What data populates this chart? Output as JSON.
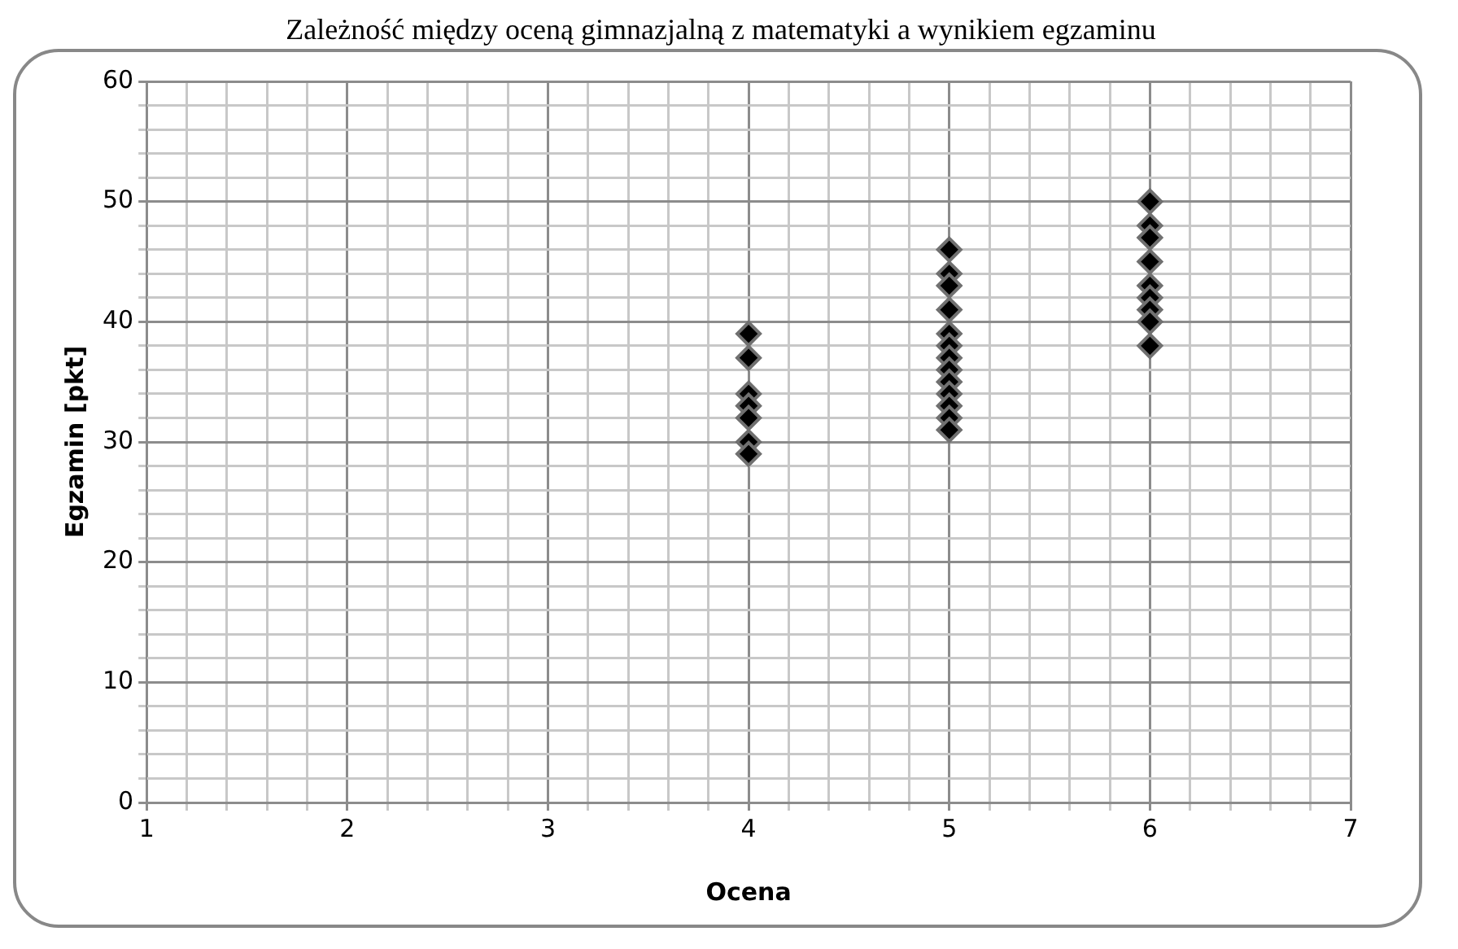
{
  "chart_data": {
    "type": "scatter",
    "title": "Zależność między oceną gimnazjalną z matematyki a wynikiem egzaminu",
    "xlabel": "Ocena",
    "ylabel": "Egzamin [pkt]",
    "series": [
      {
        "color": "#000000",
        "x": [
          4,
          4,
          4,
          4,
          4,
          4,
          4,
          5,
          5,
          5,
          5,
          5,
          5,
          5,
          5,
          5,
          5,
          5,
          5,
          5,
          6,
          6,
          6,
          6,
          6,
          6,
          6,
          6,
          6
        ],
        "values": [
          39,
          37,
          34,
          33,
          32,
          30,
          29,
          46,
          44,
          43,
          41,
          39,
          38,
          37,
          36,
          35,
          34,
          33,
          32,
          31,
          50,
          48,
          47,
          45,
          43,
          42,
          41,
          40,
          38
        ]
      }
    ],
    "xlim": [
      1,
      7
    ],
    "xticks": [
      1,
      {
        "value": 1.2,
        "label": null
      },
      {
        "value": 1.4,
        "label": null
      },
      {
        "value": 1.6,
        "label": null
      },
      {
        "value": 1.8,
        "label": null
      },
      2,
      {
        "value": 2.2,
        "label": null
      },
      {
        "value": 2.4,
        "label": null
      },
      {
        "value": 2.6,
        "label": null
      },
      {
        "value": 2.8,
        "label": null
      },
      3,
      {
        "value": 3.2,
        "label": null
      },
      {
        "value": 3.4,
        "label": null
      },
      {
        "value": 3.6,
        "label": null
      },
      {
        "value": 3.8,
        "label": null
      },
      4,
      {
        "value": 4.2,
        "label": null
      },
      {
        "value": 4.4,
        "label": null
      },
      {
        "value": 4.6,
        "label": null
      },
      {
        "value": 4.8,
        "label": null
      },
      5,
      {
        "value": 5.2,
        "label": null
      },
      {
        "value": 5.4,
        "label": null
      },
      {
        "value": 5.6,
        "label": null
      },
      {
        "value": 5.8,
        "label": null
      },
      6,
      {
        "value": 6.2,
        "label": null
      },
      {
        "value": 6.4,
        "label": null
      },
      {
        "value": 6.6,
        "label": null
      },
      {
        "value": 6.8,
        "label": null
      },
      7
    ],
    "ylim": [
      0,
      60
    ],
    "yticks": [
      0,
      {
        "value": 2,
        "label": null
      },
      {
        "value": 4,
        "label": null
      },
      {
        "value": 6,
        "label": null
      },
      {
        "value": 8,
        "label": null
      },
      10,
      {
        "value": 12,
        "label": null
      },
      {
        "value": 14,
        "label": null
      },
      {
        "value": 16,
        "label": null
      },
      {
        "value": 18,
        "label": null
      },
      20,
      {
        "value": 22,
        "label": null
      },
      {
        "value": 24,
        "label": null
      },
      {
        "value": 26,
        "label": null
      },
      {
        "value": 28,
        "label": null
      },
      30,
      {
        "value": 32,
        "label": null
      },
      {
        "value": 34,
        "label": null
      },
      {
        "value": 36,
        "label": null
      },
      {
        "value": 38,
        "label": null
      },
      40,
      {
        "value": 42,
        "label": null
      },
      {
        "value": 44,
        "label": null
      },
      {
        "value": 46,
        "label": null
      },
      {
        "value": 48,
        "label": null
      },
      50,
      {
        "value": 52,
        "label": null
      },
      {
        "value": 54,
        "label": null
      },
      {
        "value": 56,
        "label": null
      },
      {
        "value": 58,
        "label": null
      },
      60
    ],
    "grid": true,
    "legend": false,
    "marker": "diamond"
  }
}
